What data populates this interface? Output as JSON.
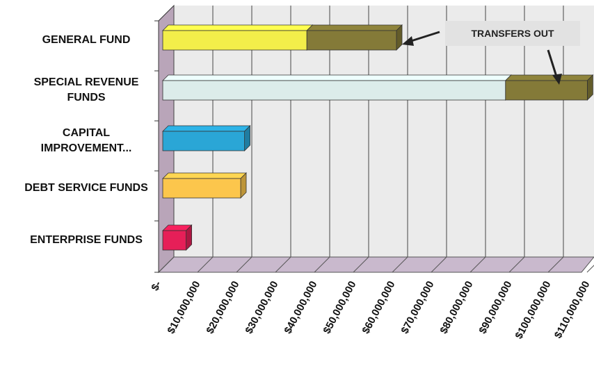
{
  "chart_data": {
    "type": "bar",
    "orientation": "horizontal",
    "stacked": true,
    "categories": [
      "GENERAL FUND",
      "SPECIAL REVENUE FUNDS",
      "CAPITAL IMPROVEMENT...",
      "DEBT SERVICE FUNDS",
      "ENTERPRISE FUNDS"
    ],
    "series": [
      {
        "colors": [
          "#f3ee4a",
          "#dcecea",
          "#2aa6d6",
          "#fcc64c",
          "#e61f58"
        ],
        "values": [
          37000000,
          88000000,
          21000000,
          20000000,
          6000000
        ]
      },
      {
        "name": "TRANSFERS OUT",
        "color": "#847a38",
        "values": [
          23000000,
          21000000,
          null,
          null,
          null
        ]
      }
    ],
    "xlim": [
      0,
      110000000
    ],
    "xticks": [
      {
        "value": 0,
        "label": "$-"
      },
      {
        "value": 10000000,
        "label": "$10,000,000"
      },
      {
        "value": 20000000,
        "label": "$20,000,000"
      },
      {
        "value": 30000000,
        "label": "$30,000,000"
      },
      {
        "value": 40000000,
        "label": "$40,000,000"
      },
      {
        "value": 50000000,
        "label": "$50,000,000"
      },
      {
        "value": 60000000,
        "label": "$60,000,000"
      },
      {
        "value": 70000000,
        "label": "$70,000,000"
      },
      {
        "value": 80000000,
        "label": "$80,000,000"
      },
      {
        "value": 90000000,
        "label": "$90,000,000"
      },
      {
        "value": 100000000,
        "label": "$100,000,000"
      },
      {
        "value": 110000000,
        "label": "$110,000,000"
      }
    ],
    "grid": true
  }
}
